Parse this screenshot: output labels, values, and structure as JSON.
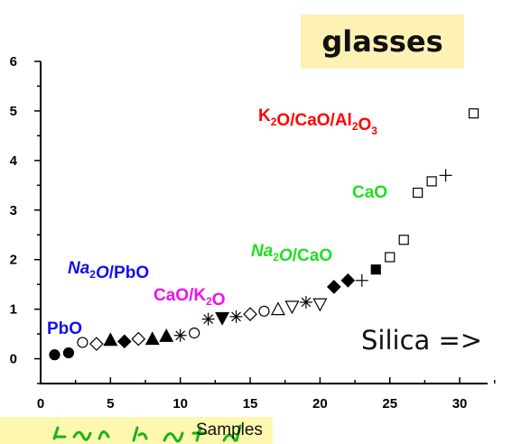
{
  "chart_data": {
    "type": "scatter",
    "title": "glasses",
    "xlabel": "Samples",
    "ylabel": "",
    "xlim": [
      0,
      32
    ],
    "ylim": [
      -0.5,
      6
    ],
    "x_ticks": [
      0,
      5,
      10,
      15,
      20,
      25,
      30
    ],
    "y_ticks": [
      0,
      1,
      2,
      3,
      4,
      5,
      6
    ],
    "grid": false,
    "legend": "none",
    "points": [
      {
        "x": 1.0,
        "y": 0.08,
        "marker": "circle-filled"
      },
      {
        "x": 2.0,
        "y": 0.12,
        "marker": "circle-filled"
      },
      {
        "x": 3.0,
        "y": 0.33,
        "marker": "circle-open"
      },
      {
        "x": 4.0,
        "y": 0.3,
        "marker": "diamond-open"
      },
      {
        "x": 5.0,
        "y": 0.38,
        "marker": "triangle-filled"
      },
      {
        "x": 6.0,
        "y": 0.35,
        "marker": "diamond-filled"
      },
      {
        "x": 7.0,
        "y": 0.4,
        "marker": "diamond-open"
      },
      {
        "x": 8.0,
        "y": 0.4,
        "marker": "triangle-filled"
      },
      {
        "x": 9.0,
        "y": 0.46,
        "marker": "triangle-filled"
      },
      {
        "x": 10.0,
        "y": 0.47,
        "marker": "star"
      },
      {
        "x": 11.0,
        "y": 0.52,
        "marker": "circle-open"
      },
      {
        "x": 12.0,
        "y": 0.8,
        "marker": "star"
      },
      {
        "x": 13.0,
        "y": 0.82,
        "marker": "triangle-down-filled"
      },
      {
        "x": 14.0,
        "y": 0.85,
        "marker": "star"
      },
      {
        "x": 15.0,
        "y": 0.9,
        "marker": "diamond-open"
      },
      {
        "x": 16.0,
        "y": 0.96,
        "marker": "circle-open"
      },
      {
        "x": 17.0,
        "y": 1.0,
        "marker": "triangle-open"
      },
      {
        "x": 18.0,
        "y": 1.05,
        "marker": "triangle-down-open"
      },
      {
        "x": 19.0,
        "y": 1.14,
        "marker": "star"
      },
      {
        "x": 20.0,
        "y": 1.1,
        "marker": "triangle-down-open"
      },
      {
        "x": 21.0,
        "y": 1.45,
        "marker": "diamond-filled"
      },
      {
        "x": 22.0,
        "y": 1.58,
        "marker": "diamond-filled"
      },
      {
        "x": 23.0,
        "y": 1.58,
        "marker": "plus"
      },
      {
        "x": 24.0,
        "y": 1.8,
        "marker": "square-filled"
      },
      {
        "x": 25.0,
        "y": 2.05,
        "marker": "square-open"
      },
      {
        "x": 26.0,
        "y": 2.4,
        "marker": "square-open"
      },
      {
        "x": 27.0,
        "y": 3.35,
        "marker": "square-open"
      },
      {
        "x": 28.0,
        "y": 3.58,
        "marker": "square-open"
      },
      {
        "x": 29.0,
        "y": 3.7,
        "marker": "plus"
      },
      {
        "x": 31.0,
        "y": 4.95,
        "marker": "square-open"
      }
    ],
    "annotations": [
      {
        "label": "K2O/CaO/Al2O3",
        "parts": [
          [
            "K",
            ""
          ],
          [
            "2",
            "sub"
          ],
          [
            "O/CaO/Al",
            ""
          ],
          [
            "2",
            "sub"
          ],
          [
            "O",
            ""
          ],
          [
            "3",
            "sub"
          ]
        ],
        "color": "#ff0000",
        "italic_upto": 0
      },
      {
        "label": "CaO",
        "parts": [
          [
            "CaO",
            ""
          ]
        ],
        "color": "#22dd22",
        "italic_upto": 0
      },
      {
        "label": "Na2O/CaO",
        "parts": [
          [
            "Na",
            "i"
          ],
          [
            "2",
            "sub"
          ],
          [
            "O",
            "i"
          ],
          [
            "/CaO",
            ""
          ]
        ],
        "color": "#22dd22",
        "italic_upto": 0
      },
      {
        "label": "Na2O/PbO",
        "parts": [
          [
            "Na",
            "i"
          ],
          [
            "2",
            "sub"
          ],
          [
            "O",
            "i"
          ],
          [
            "/PbO",
            ""
          ]
        ],
        "color": "#1111ee",
        "italic_upto": 0
      },
      {
        "label": "CaO/K2O",
        "parts": [
          [
            "CaO/K",
            ""
          ],
          [
            "2",
            "sub"
          ],
          [
            "O",
            ""
          ]
        ],
        "color": "#ee11ee",
        "italic_upto": 0
      },
      {
        "label": "PbO",
        "parts": [
          [
            "PbO",
            ""
          ]
        ],
        "color": "#1111ee",
        "italic_upto": 0
      }
    ]
  },
  "side_label": "Silica =>"
}
